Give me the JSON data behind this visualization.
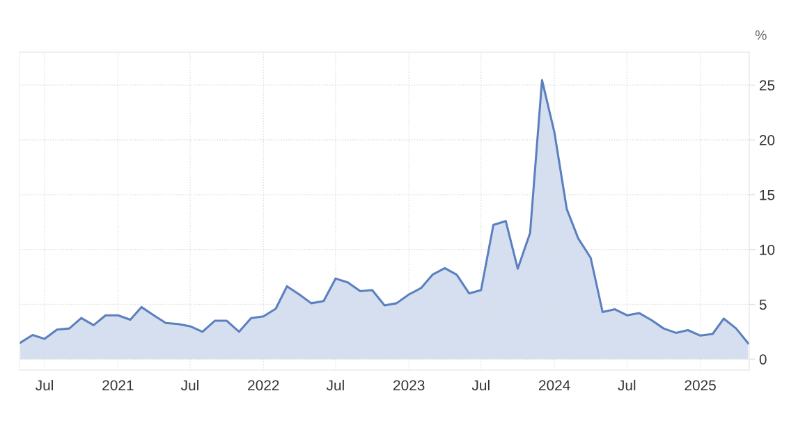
{
  "chart_data": {
    "type": "area",
    "ylabel": "%",
    "x": [
      "2020-05",
      "2020-06",
      "2020-07",
      "2020-08",
      "2020-09",
      "2020-10",
      "2020-11",
      "2020-12",
      "2021-01",
      "2021-02",
      "2021-03",
      "2021-04",
      "2021-05",
      "2021-06",
      "2021-07",
      "2021-08",
      "2021-09",
      "2021-10",
      "2021-11",
      "2021-12",
      "2022-01",
      "2022-02",
      "2022-03",
      "2022-04",
      "2022-05",
      "2022-06",
      "2022-07",
      "2022-08",
      "2022-09",
      "2022-10",
      "2022-11",
      "2022-12",
      "2023-01",
      "2023-02",
      "2023-03",
      "2023-04",
      "2023-05",
      "2023-06",
      "2023-07",
      "2023-08",
      "2023-09",
      "2023-10",
      "2023-11",
      "2023-12",
      "2024-01",
      "2024-02",
      "2024-03",
      "2024-04",
      "2024-05",
      "2024-06",
      "2024-07",
      "2024-08",
      "2024-09",
      "2024-10",
      "2024-11",
      "2024-12",
      "2025-01",
      "2025-02",
      "2025-03",
      "2025-04",
      "2025-05"
    ],
    "series": [
      {
        "color": "#5b80bf",
        "values": [
          1.5,
          2.2,
          1.85,
          2.7,
          2.8,
          3.75,
          3.1,
          4.0,
          4.0,
          3.6,
          4.75,
          4.0,
          3.3,
          3.2,
          3.0,
          2.5,
          3.5,
          3.5,
          2.5,
          3.75,
          3.9,
          4.6,
          6.65,
          5.9,
          5.1,
          5.3,
          7.35,
          7.0,
          6.2,
          6.3,
          4.9,
          5.1,
          5.9,
          6.5,
          7.7,
          8.3,
          7.7,
          6.0,
          6.3,
          12.25,
          12.6,
          8.25,
          11.5,
          25.45,
          20.7,
          13.7,
          11.0,
          9.25,
          4.3,
          4.55,
          4.0,
          4.2,
          3.55,
          2.8,
          2.4,
          2.65,
          2.15,
          2.3,
          3.7,
          2.8,
          1.45
        ]
      }
    ],
    "xlim": [
      "2020-04-29",
      "2025-05-04"
    ],
    "xticks": [
      {
        "value": "2020-07",
        "label": "Jul"
      },
      {
        "value": "2021-01",
        "label": "2021"
      },
      {
        "value": "2021-07",
        "label": "Jul"
      },
      {
        "value": "2022-01",
        "label": "2022"
      },
      {
        "value": "2022-07",
        "label": "Jul"
      },
      {
        "value": "2023-01",
        "label": "2023"
      },
      {
        "value": "2023-07",
        "label": "Jul"
      },
      {
        "value": "2024-01",
        "label": "2024"
      },
      {
        "value": "2024-07",
        "label": "Jul"
      },
      {
        "value": "2025-01",
        "label": "2025"
      }
    ],
    "ylim": [
      -1,
      28
    ],
    "yticks": [
      0,
      5,
      10,
      15,
      20,
      25
    ],
    "grid": true,
    "line_style": "solid",
    "marker": "none"
  }
}
